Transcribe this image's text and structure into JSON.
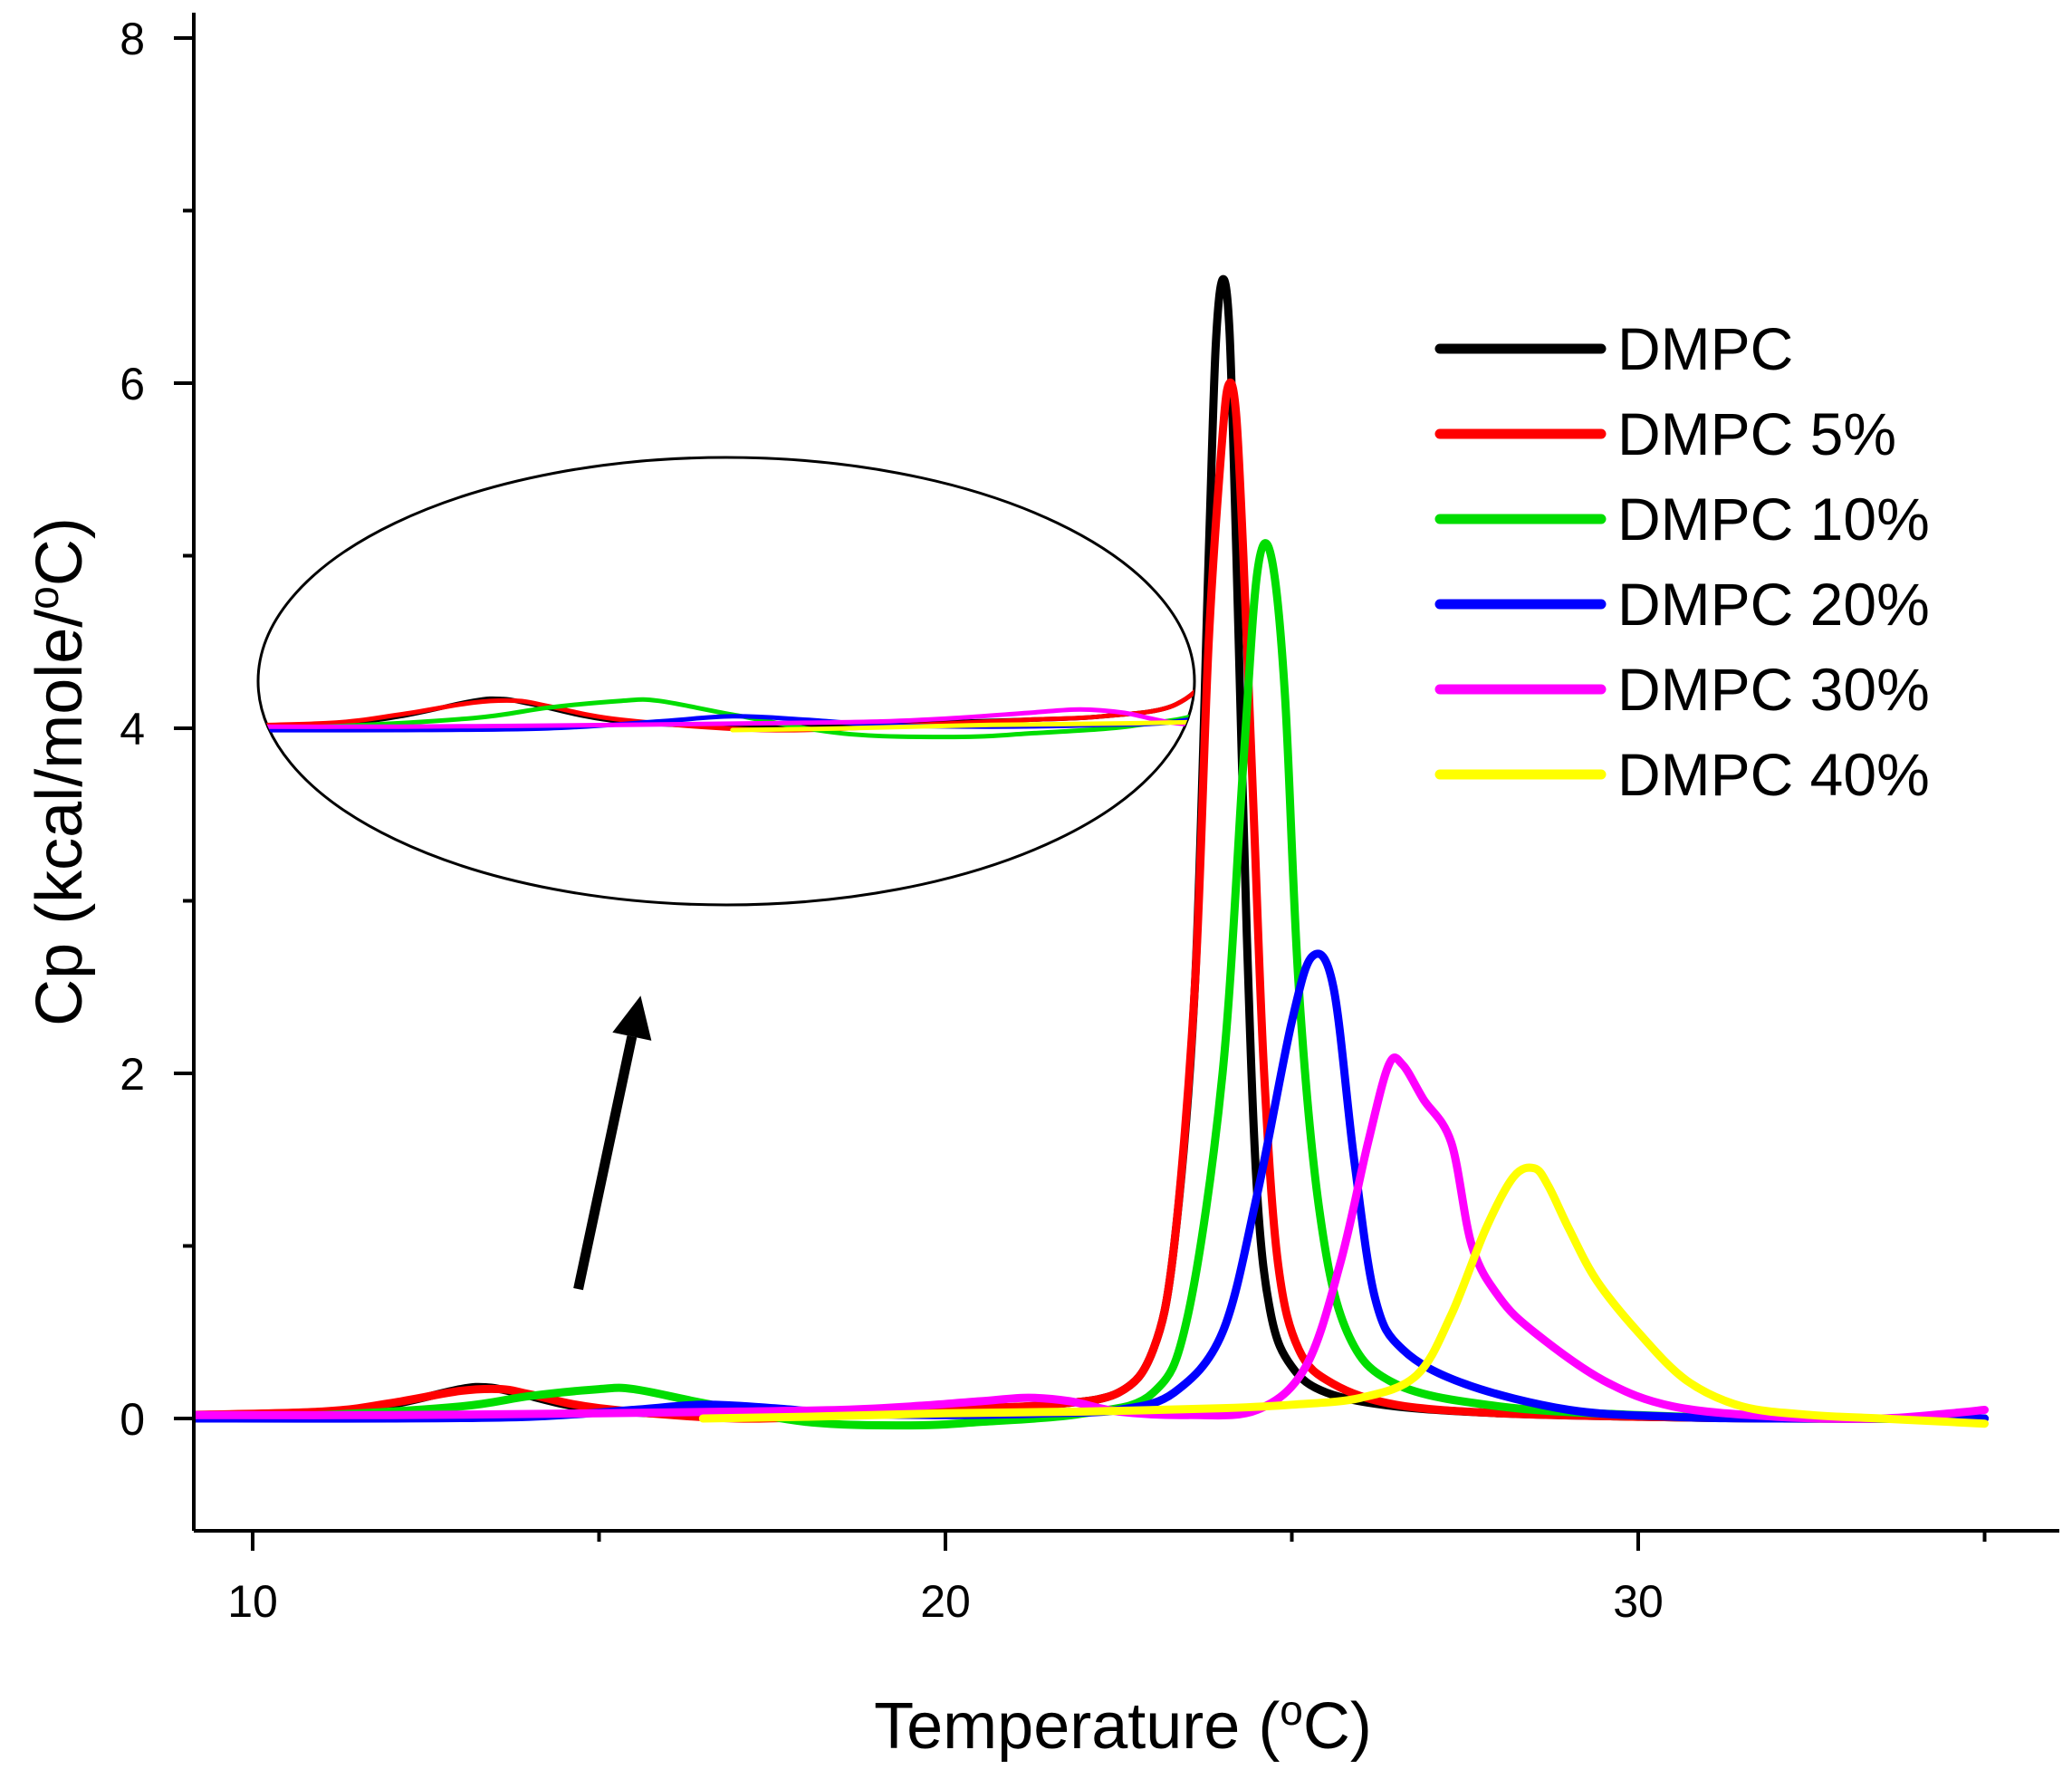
{
  "chart_data": {
    "type": "line",
    "title": "",
    "xlabel_main": "Temperature (",
    "xlabel_sup": "o",
    "xlabel_end": "C)",
    "ylabel_main": "Cp (kcal/mole/",
    "ylabel_sup": "o",
    "ylabel_end": "C)",
    "xlim": [
      8.9,
      35.9
    ],
    "ylim": [
      -0.6,
      8.2
    ],
    "x_ticks": [
      10,
      20,
      30
    ],
    "x_ticks_labels": [
      "10",
      "20",
      "30"
    ],
    "y_ticks": [
      0,
      2,
      4,
      6,
      8
    ],
    "y_ticks_labels": [
      "0",
      "2",
      "4",
      "6",
      "8"
    ],
    "grid": false,
    "legend_position": "top-right",
    "series": [
      {
        "name": "DMPC",
        "color": "#000000",
        "x": [
          9.0,
          11.0,
          12.0,
          13.0,
          13.4,
          13.8,
          15.0,
          17.0,
          19.0,
          20.5,
          21.5,
          22.5,
          23.0,
          23.3,
          23.6,
          23.8,
          23.9,
          24.0,
          24.1,
          24.2,
          24.35,
          24.5,
          24.7,
          25.0,
          25.5,
          26.5,
          28.0,
          30.0,
          32.0,
          35.0
        ],
        "y": [
          0.0,
          0.03,
          0.08,
          0.17,
          0.18,
          0.15,
          0.05,
          0.02,
          0.04,
          0.06,
          0.08,
          0.15,
          0.4,
          1.0,
          2.5,
          5.0,
          6.2,
          6.6,
          6.3,
          5.0,
          2.8,
          1.3,
          0.6,
          0.3,
          0.15,
          0.07,
          0.03,
          0.01,
          0.0,
          0.0
        ]
      },
      {
        "name": "DMPC 5%",
        "color": "#ff0000",
        "x": [
          9.0,
          11.0,
          12.0,
          13.0,
          13.6,
          14.0,
          15.0,
          17.0,
          19.0,
          20.5,
          21.5,
          22.5,
          23.0,
          23.3,
          23.6,
          23.8,
          24.0,
          24.1,
          24.2,
          24.3,
          24.45,
          24.6,
          24.8,
          25.1,
          25.6,
          26.5,
          28.0,
          30.0,
          32.0,
          35.0
        ],
        "y": [
          0.02,
          0.04,
          0.09,
          0.16,
          0.17,
          0.14,
          0.06,
          0.0,
          0.03,
          0.06,
          0.08,
          0.15,
          0.4,
          1.0,
          2.5,
          4.5,
          5.7,
          6.0,
          5.8,
          5.0,
          3.5,
          2.0,
          0.9,
          0.4,
          0.2,
          0.08,
          0.03,
          0.01,
          0.0,
          0.0
        ]
      },
      {
        "name": "DMPC 10%",
        "color": "#00dd00",
        "x": [
          9.0,
          11.0,
          13.0,
          14.0,
          15.0,
          15.5,
          16.5,
          18.0,
          19.5,
          20.5,
          22.0,
          23.0,
          23.5,
          24.0,
          24.3,
          24.5,
          24.7,
          24.9,
          25.1,
          25.4,
          25.8,
          26.5,
          28.0,
          30.0,
          32.0,
          35.0
        ],
        "y": [
          0.0,
          0.02,
          0.07,
          0.13,
          0.17,
          0.17,
          0.09,
          -0.02,
          -0.04,
          -0.02,
          0.03,
          0.15,
          0.6,
          2.0,
          3.8,
          4.9,
          5.0,
          4.2,
          2.5,
          1.2,
          0.5,
          0.2,
          0.07,
          0.02,
          0.0,
          0.0
        ]
      },
      {
        "name": "DMPC 20%",
        "color": "#0000ff",
        "x": [
          9.0,
          12.0,
          14.0,
          15.5,
          16.5,
          17.5,
          18.5,
          20.0,
          21.5,
          22.5,
          23.3,
          24.0,
          24.5,
          25.0,
          25.3,
          25.6,
          25.9,
          26.2,
          26.6,
          27.5,
          29.0,
          30.5,
          32.0,
          35.0
        ],
        "y": [
          0.0,
          0.0,
          0.01,
          0.05,
          0.08,
          0.06,
          0.03,
          0.02,
          0.03,
          0.05,
          0.15,
          0.5,
          1.3,
          2.3,
          2.68,
          2.5,
          1.5,
          0.7,
          0.4,
          0.2,
          0.05,
          0.01,
          0.0,
          0.0
        ]
      },
      {
        "name": "DMPC 30%",
        "color": "#ff00ff",
        "x": [
          9.0,
          12.0,
          15.0,
          17.0,
          18.5,
          19.5,
          20.5,
          21.2,
          21.8,
          22.5,
          23.5,
          24.5,
          25.2,
          25.7,
          26.1,
          26.4,
          26.6,
          26.9,
          27.3,
          27.6,
          28.0,
          28.5,
          29.5,
          30.5,
          32.0,
          33.5,
          34.5,
          35.0
        ],
        "y": [
          0.02,
          0.02,
          0.03,
          0.04,
          0.05,
          0.07,
          0.1,
          0.12,
          0.1,
          0.04,
          0.02,
          0.05,
          0.3,
          0.9,
          1.6,
          2.05,
          2.05,
          1.85,
          1.6,
          1.0,
          0.7,
          0.5,
          0.22,
          0.07,
          0.01,
          0.0,
          0.03,
          0.05
        ]
      },
      {
        "name": "DMPC 40%",
        "color": "#ffff00",
        "x": [
          16.5,
          18.0,
          20.0,
          22.0,
          24.0,
          25.0,
          26.0,
          26.8,
          27.3,
          27.8,
          28.2,
          28.5,
          28.7,
          29.0,
          29.4,
          30.0,
          30.7,
          31.5,
          32.5,
          33.5,
          34.5,
          35.0
        ],
        "y": [
          0.0,
          0.01,
          0.03,
          0.04,
          0.06,
          0.08,
          0.12,
          0.25,
          0.6,
          1.1,
          1.4,
          1.45,
          1.35,
          1.1,
          0.8,
          0.5,
          0.22,
          0.07,
          0.02,
          0.0,
          -0.02,
          -0.03
        ]
      }
    ],
    "annotations": [
      {
        "type": "ellipse",
        "text": "",
        "meaning": "magnified view of the pre-transition region (10–22 °C)",
        "x_range": [
          10,
          22
        ],
        "y_scale": 18,
        "y_offset": 4.0
      },
      {
        "type": "arrow",
        "text": "",
        "from": [
          14.7,
          0.75
        ],
        "to": [
          15.6,
          2.45
        ]
      }
    ]
  }
}
